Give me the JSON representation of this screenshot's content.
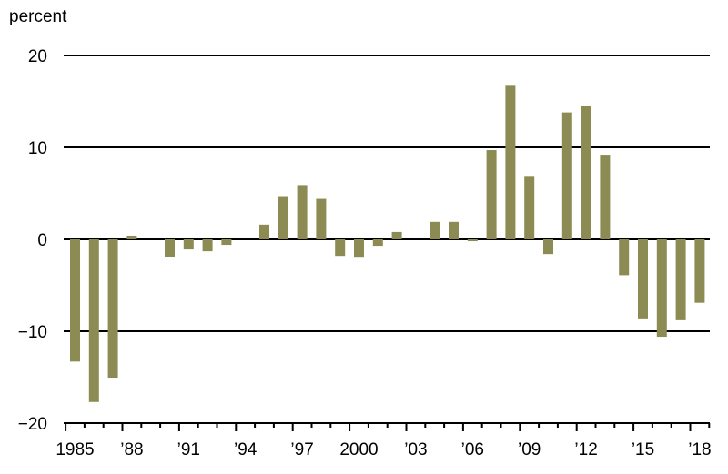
{
  "chart_data": {
    "type": "bar",
    "ylabel": "percent",
    "ylim": [
      -20,
      20
    ],
    "yticks": [
      20,
      10,
      0,
      -10,
      -20
    ],
    "ytick_labels": [
      "20",
      "10",
      "0",
      "−10",
      "−20"
    ],
    "grid": true,
    "years": [
      1985,
      1986,
      1987,
      1988,
      1989,
      1990,
      1991,
      1992,
      1993,
      1994,
      1995,
      1996,
      1997,
      1998,
      1999,
      2000,
      2001,
      2002,
      2003,
      2004,
      2005,
      2006,
      2007,
      2008,
      2009,
      2010,
      2011,
      2012,
      2013,
      2014,
      2015,
      2016,
      2017,
      2018
    ],
    "values": [
      -13.3,
      -17.7,
      -15.1,
      0.4,
      0.0,
      -1.9,
      -1.1,
      -1.3,
      -0.6,
      0.0,
      1.6,
      4.7,
      5.9,
      4.4,
      -1.8,
      -2.0,
      -0.7,
      0.8,
      0.0,
      1.9,
      1.9,
      -0.2,
      9.7,
      16.8,
      6.8,
      -1.6,
      13.8,
      14.5,
      9.2,
      -3.9,
      -8.7,
      -10.6,
      -8.8,
      -6.9
    ],
    "xtick_years": [
      1985,
      1988,
      1991,
      1994,
      1997,
      2000,
      2003,
      2006,
      2009,
      2012,
      2015,
      2018
    ],
    "xtick_labels": [
      "1985",
      "’88",
      "’91",
      "’94",
      "’97",
      "2000",
      "’03",
      "’06",
      "’09",
      "’12",
      "’15",
      "’18"
    ],
    "bar_color": "#8b8b53",
    "grid_color": "#000000"
  }
}
